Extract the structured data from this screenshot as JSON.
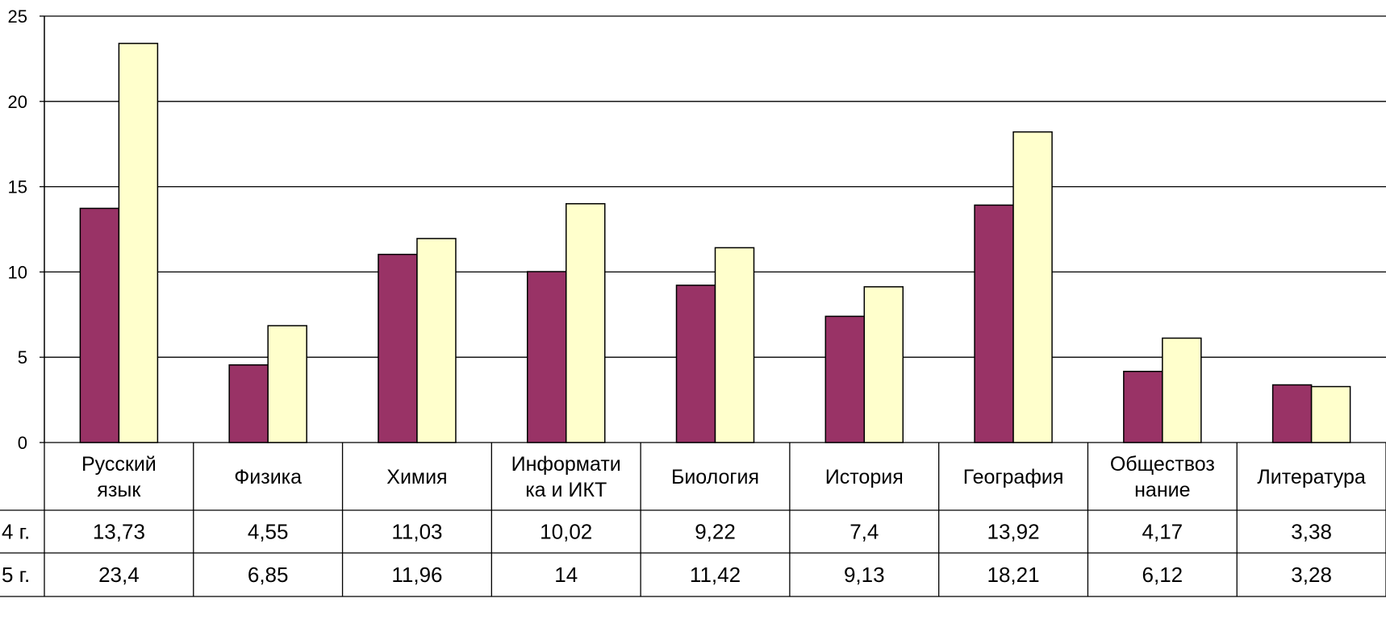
{
  "chart_data": {
    "type": "bar",
    "categories": [
      [
        "Русский",
        "язык"
      ],
      [
        "Физика"
      ],
      [
        "Химия"
      ],
      [
        "Информати",
        "ка и ИКТ"
      ],
      [
        "Биология"
      ],
      [
        "История"
      ],
      [
        "География"
      ],
      [
        "Обществоз",
        "нание"
      ],
      [
        "Литература"
      ]
    ],
    "series": [
      {
        "name": "4 г.",
        "values": [
          13.73,
          4.55,
          11.03,
          10.02,
          9.22,
          7.4,
          13.92,
          4.17,
          3.38
        ],
        "labels": [
          "13,73",
          "4,55",
          "11,03",
          "10,02",
          "9,22",
          "7,4",
          "13,92",
          "4,17",
          "3,38"
        ],
        "color": "#993366"
      },
      {
        "name": "5 г.",
        "values": [
          23.4,
          6.85,
          11.96,
          14,
          11.42,
          9.13,
          18.21,
          6.12,
          3.28
        ],
        "labels": [
          "23,4",
          "6,85",
          "11,96",
          "14",
          "11,42",
          "9,13",
          "18,21",
          "6,12",
          "3,28"
        ],
        "color": "#FFFFCC"
      }
    ],
    "ylim": [
      0,
      25
    ],
    "yticks": [
      0,
      5,
      10,
      15,
      20,
      25
    ],
    "grid": true,
    "data_table": true
  }
}
